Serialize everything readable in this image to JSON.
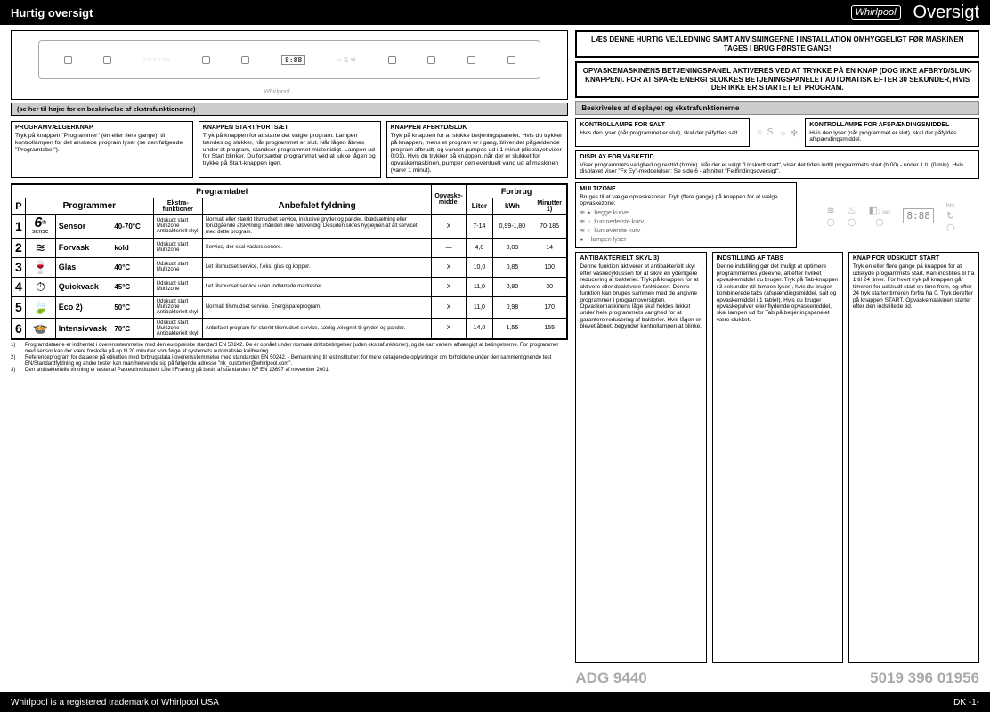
{
  "header": {
    "left": "Hurtig oversigt",
    "right": "Oversigt",
    "brand": "Whirlpool"
  },
  "footer": {
    "left": "Whirlpool is a registered trademark of Whirlpool USA",
    "right": "DK -1-"
  },
  "panel": {
    "note": "(se her til højre for en beskrivelse af ekstrafunktionerne)",
    "disp": "8:88"
  },
  "desc": {
    "b1": {
      "t": "PROGRAMVÆLGERKNAP",
      "b": "Tryk på knappen \"Programmer\" (én eller flere gange), til kontrollampen for det ønskede program lyser (se den følgende \"Programtabel\")."
    },
    "b2": {
      "t": "KNAPPEN START/FORTSÆT",
      "b": "Tryk på knappen for at starte det valgte program. Lampen tændes og slukker, når programmet er slut. Når lågen åbnes under et program, standser programmet midlertidigt. Lampen ud for Start blinker. Du fortsætter programmet ved at lukke lågen og trykke på Start-knappen igen."
    },
    "b3": {
      "t": "KNAPPEN AFBRYD/SLUK",
      "b": "Tryk på knappen for at slukke betjeningspanelet. Hvis du trykker på knappen, mens et program er i gang, bliver det pågældende program afbrudt, og vandet pumpes ud i 1 minut (displayet viser 0:01). Hvis du trykker på knappen, når der er slukket for opvaskemaskinen, pumper den eventuelt vand ud af maskinen (varer 1 minut)."
    }
  },
  "table": {
    "th_progtabel": "Programtabel",
    "th_forbrug": "Forbrug",
    "th_p": "P",
    "th_prog": "Programmer",
    "th_extra": "Ekstra-\nfunktioner",
    "th_anbef": "Anbefalet fyldning",
    "th_middel": "Opvaske-\nmiddel",
    "th_liter": "Liter",
    "th_kwh": "kWh",
    "th_min": "Minutter 1)",
    "rows": [
      {
        "n": "1",
        "icon": "6th",
        "name": "Sensor",
        "temp": "40-70°C",
        "extra": "Udskudt start\nMultizone\nAntibakterielt skyl",
        "load": "Normalt eller stærkt tilsmudset service, inklusive gryder og pander. Iblødsætning eller forudgående afskylning i hånden ikke nødvendig. Desuden sikres hygiejnen af alt servicet med dette program.",
        "mid": "X",
        "l": "7-14",
        "kwh": "0,99-1,80",
        "min": "70-185"
      },
      {
        "n": "2",
        "icon": "≋",
        "name": "Forvask",
        "temp": "kold",
        "extra": "Udskudt start\nMultizone",
        "load": "Service, der skal vaskes senere.",
        "mid": "—",
        "l": "4,0",
        "kwh": "0,03",
        "min": "14"
      },
      {
        "n": "3",
        "icon": "🍷",
        "name": "Glas",
        "temp": "40°C",
        "extra": "Udskudt start\nMultizone",
        "load": "Let tilsmudset service, f.eks. glas og kopper.",
        "mid": "X",
        "l": "10,0",
        "kwh": "0,85",
        "min": "100"
      },
      {
        "n": "4",
        "icon": "⏱",
        "name": "Quickvask",
        "temp": "45°C",
        "extra": "Udskudt start\nMultizone",
        "load": "Let tilsmudset service uden indtørrede madrester.",
        "mid": "X",
        "l": "11,0",
        "kwh": "0,80",
        "min": "30"
      },
      {
        "n": "5",
        "icon": "🍃",
        "name": "Eco 2)",
        "temp": "50°C",
        "extra": "Udskudt start\nMultizone\nAntibakterielt skyl",
        "load": "Normalt tilsmudset service. Energispareprogram.",
        "mid": "X",
        "l": "11,0",
        "kwh": "0,98",
        "min": "170"
      },
      {
        "n": "6",
        "icon": "🍲",
        "name": "Intensivvask",
        "temp": "70°C",
        "extra": "Udskudt start\nMultizone\nAntibakterielt skyl",
        "load": "Anbefalet program for stærkt tilsmudset service, særlig velegnet til gryder og pander.",
        "mid": "X",
        "l": "14,0",
        "kwh": "1,55",
        "min": "155"
      }
    ]
  },
  "footnotes": {
    "f1": {
      "n": "1)",
      "t": "Programdataene er indhentet i overensstemmelse med den europæiske standard EN 50242. De er opnået under normale driftsbetingelser (uden ekstrafunktioner), og de kan variere afhængigt af betingelserne. For programmer med sensor kan der være forskelle på op til 20 minutter som følge af systemets automatiske kalibrering."
    },
    "f2": {
      "n": "2)",
      "t": "Referenceprogram for dataene på etiketten med forbrugsdata i overensstemmelse med standarden EN 50242. - Bemærkning til testinstitutter: for mere detaljerede oplysninger om forholdene under den sammenlignende test EN/Standardfyldning og andre tester kan man henvende sig på følgende adresse \"nk_customer@whirlpool.com\"."
    },
    "f3": {
      "n": "3)",
      "t": "Den antibakterielle virkning er testet af Pasteurinstituttet i Lille i Frankrig på basis af standarden NF EN 13697 af november 2001."
    }
  },
  "right": {
    "notice1": "LÆS DENNE HURTIG VEJLEDNING SAMT ANVISNINGERNE I INSTALLATION OMHYGGELIGT FØR MASKINEN TAGES I BRUG FØRSTE GANG!",
    "notice2": "OPVASKEMASKINENS BETJENINGSPANEL AKTIVERES VED AT TRYKKE PÅ EN KNAP (DOG IKKE AFBRYD/SLUK-KNAPPEN). FOR AT SPARE ENERGI SLUKKES BETJENINGSPANELET AUTOMATISK EFTER 30 SEKUNDER, HVIS DER IKKE ER STARTET ET PROGRAM.",
    "sect": "Beskrivelse af displayet og ekstrafunktionerne",
    "salt": {
      "t": "KONTROLLAMPE FOR SALT",
      "b": "Hvis den lyser (når programmet er slut), skal der påfyldes salt."
    },
    "rinse": {
      "t": "KONTROLLAMPE FOR AFSPÆNDINGSMIDDEL",
      "b": "Hvis den lyser (når programmet er slut), skal der påfyldes afspændingsmiddel."
    },
    "disp": {
      "t": "DISPLAY FOR VASKETID",
      "b": "Viser programmets varighed og resttid (h:min). Når der er valgt \"Udskudt start\", viser det tiden indtil programmets start (h:00) - under 1 ti. (0:min).\nHvis displayet viser \"Fx Ey\"-meddelelser: Se side 6 - afsnittet \"Fejlfindingsoversigt\"."
    },
    "mz": {
      "t": "MULTIZONE",
      "b": "Bruges til at vælge opvaskezoner. Tryk (flere gange) på knappen for at vælge opvaskezone:",
      "l1": "begge kurve",
      "l2": "kun nederste kurv",
      "l3": "kun øverste kurv",
      "l4": "- lampen lyser"
    },
    "abs": {
      "t": "ANTIBAKTERIELT SKYL 3)",
      "b": "Denne funktion aktiverer et antibakterielt skyl efter vaskecyklussen for at sikre en yderligere reducering af bakterier. Tryk på knappen for at aktivere eller deaktivere funktionen. Denne funktion kan bruges sammen med de angivne programmer i programoversigten. Opvaskemaskinens låge skal holdes lukket under hele programmets varighed for at garantere reducering af bakterier. Hvis lågen er blevet åbnet, begynder kontrollampen at blinke."
    },
    "tabs": {
      "t": "INDSTILLING AF TABS",
      "b": "Denne indstilling gør det muligt at optimere programmernes ydeevne, alt efter hvilket opvaskemiddel du bruger. Tryk på Tab-knappen i 3 sekunder (til lampen lyser), hvis du bruger kombinerede tabs (afspændingsmiddel, salt og opvaskemiddel i 1 tablet). Hvis du bruger opvaskepulver eller flydende opvaskemiddel, skal lampen ud for Tab på betjeningspanelet være slukket."
    },
    "delay": {
      "t": "KNAP FOR UDSKUDT START",
      "b": "Tryk en eller flere gange på knappen for at udskyde programmets start. Kan indstilles til fra 1 til 24 timer. For hvert tryk på knappen går timeren for udskudt start en time frem, og efter 24 tryk starter timeren forfra fra 0. Tryk derefter på knappen START. Opvaskemaskinen starter efter den indstillede tid."
    },
    "digi": "8:88",
    "model": "ADG 9440",
    "partno": "5019 396 01956"
  }
}
